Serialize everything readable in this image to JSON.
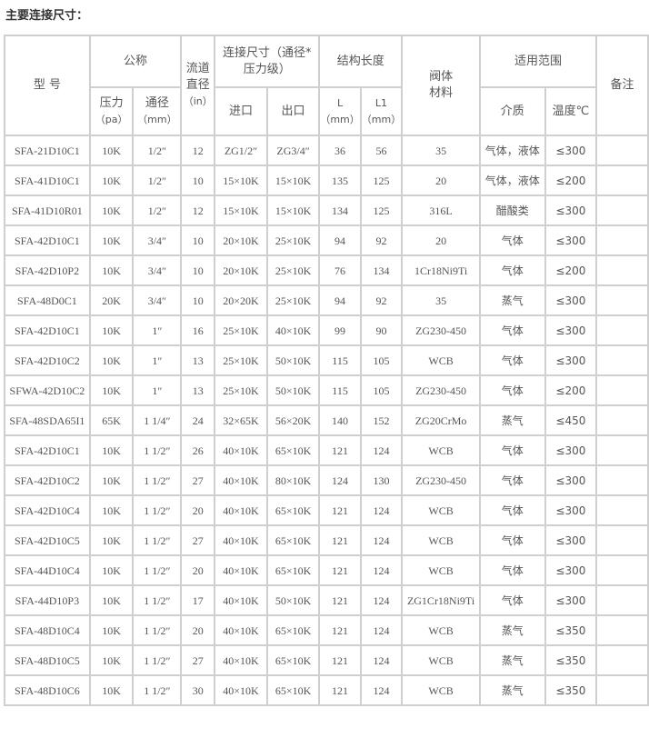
{
  "title": "主要连接尺寸：",
  "header": {
    "model": "型 号",
    "nominal": "公称",
    "flow_l1": "流道",
    "flow_l2": "直径",
    "flow_l3": "（in）",
    "conn_l1": "连接尺寸（通径*",
    "conn_l2": "压力级）",
    "length": "结构长度",
    "material_l1": "阀体",
    "material_l2": "材料",
    "scope": "适用范围",
    "remark": "备注",
    "pressure": "压力",
    "pressure_unit": "（pa）",
    "bore": "通径",
    "bore_unit": "（mm）",
    "inlet": "进口",
    "outlet": "出口",
    "L": "L",
    "L_unit": "（mm）",
    "L1": "L1",
    "L1_unit": "（mm）",
    "medium": "介质",
    "temp": "温度℃"
  },
  "rows": [
    [
      "SFA-21D10C1",
      "10K",
      "1/2″",
      "12",
      "ZG1/2″",
      "ZG3/4″",
      "36",
      "56",
      "35",
      "气体，液体",
      "≤300",
      ""
    ],
    [
      "SFA-41D10C1",
      "10K",
      "1/2″",
      "10",
      "15×10K",
      "15×10K",
      "135",
      "125",
      "20",
      "气体，液体",
      "≤200",
      ""
    ],
    [
      "SFA-41D10R01",
      "10K",
      "1/2″",
      "12",
      "15×10K",
      "15×10K",
      "134",
      "125",
      "316L",
      "醋酸类",
      "≤300",
      ""
    ],
    [
      "SFA-42D10C1",
      "10K",
      "3/4″",
      "10",
      "20×10K",
      "25×10K",
      "94",
      "92",
      "20",
      "气体",
      "≤300",
      ""
    ],
    [
      "SFA-42D10P2",
      "10K",
      "3/4″",
      "10",
      "20×10K",
      "25×10K",
      "76",
      "134",
      "1Cr18Ni9Ti",
      "气体",
      "≤200",
      ""
    ],
    [
      "SFA-48D0C1",
      "20K",
      "3/4″",
      "10",
      "20×20K",
      "25×10K",
      "94",
      "92",
      "35",
      "蒸气",
      "≤300",
      ""
    ],
    [
      "SFA-42D10C1",
      "10K",
      "1″",
      "16",
      "25×10K",
      "40×10K",
      "99",
      "90",
      "ZG230-450",
      "气体",
      "≤300",
      ""
    ],
    [
      "SFA-42D10C2",
      "10K",
      "1″",
      "13",
      "25×10K",
      "50×10K",
      "115",
      "105",
      "WCB",
      "气体",
      "≤300",
      ""
    ],
    [
      "SFWA-42D10C2",
      "10K",
      "1″",
      "13",
      "25×10K",
      "50×10K",
      "115",
      "105",
      "ZG230-450",
      "气体",
      "≤200",
      ""
    ],
    [
      "SFA-48SDA65I1",
      "65K",
      "1 1/4″",
      "24",
      "32×65K",
      "56×20K",
      "140",
      "152",
      "ZG20CrMo",
      "蒸气",
      "≤450",
      ""
    ],
    [
      "SFA-42D10C1",
      "10K",
      "1 1/2″",
      "26",
      "40×10K",
      "65×10K",
      "121",
      "124",
      "WCB",
      "气体",
      "≤300",
      ""
    ],
    [
      "SFA-42D10C2",
      "10K",
      "1 1/2″",
      "27",
      "40×10K",
      "80×10K",
      "124",
      "130",
      "ZG230-450",
      "气体",
      "≤300",
      ""
    ],
    [
      "SFA-42D10C4",
      "10K",
      "1 1/2″",
      "20",
      "40×10K",
      "65×10K",
      "121",
      "124",
      "WCB",
      "气体",
      "≤300",
      ""
    ],
    [
      "SFA-42D10C5",
      "10K",
      "1 1/2″",
      "27",
      "40×10K",
      "65×10K",
      "121",
      "124",
      "WCB",
      "气体",
      "≤300",
      ""
    ],
    [
      "SFA-44D10C4",
      "10K",
      "1 1/2″",
      "20",
      "40×10K",
      "65×10K",
      "121",
      "124",
      "WCB",
      "气体",
      "≤300",
      ""
    ],
    [
      "SFA-44D10P3",
      "10K",
      "1 1/2″",
      "17",
      "40×10K",
      "50×10K",
      "121",
      "124",
      "ZG1Cr18Ni9Ti",
      "气体",
      "≤300",
      ""
    ],
    [
      "SFA-48D10C4",
      "10K",
      "1 1/2″",
      "20",
      "40×10K",
      "65×10K",
      "121",
      "124",
      "WCB",
      "蒸气",
      "≤350",
      ""
    ],
    [
      "SFA-48D10C5",
      "10K",
      "1 1/2″",
      "27",
      "40×10K",
      "65×10K",
      "121",
      "124",
      "WCB",
      "蒸气",
      "≤350",
      ""
    ],
    [
      "SFA-48D10C6",
      "10K",
      "1 1/2″",
      "30",
      "40×10K",
      "65×10K",
      "121",
      "124",
      "WCB",
      "蒸气",
      "≤350",
      ""
    ]
  ]
}
